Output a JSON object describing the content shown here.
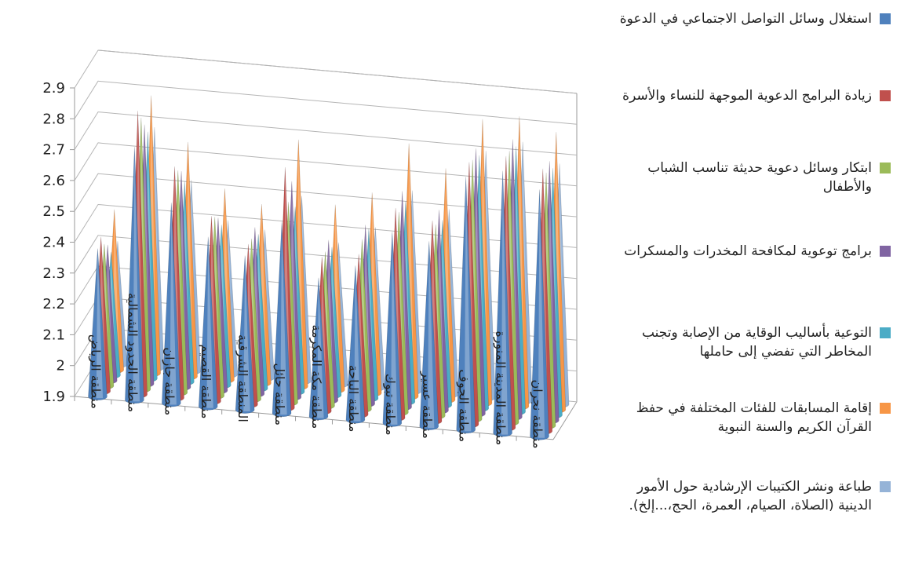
{
  "chart_data": {
    "type": "bar",
    "style": "3d-cone",
    "title": "",
    "xlabel": "",
    "ylabel": "",
    "ylim": [
      1.9,
      2.9
    ],
    "yticks": [
      "1.9",
      "2",
      "2.1",
      "2.2",
      "2.3",
      "2.4",
      "2.5",
      "2.6",
      "2.7",
      "2.8",
      "2.9"
    ],
    "grid": true,
    "legend_position": "right",
    "categories": [
      "منطقة الرياض",
      "منطقة الحدود الشمالية",
      "منطقة جازان",
      "منطقة القصيم",
      "المنطقة الشرقية",
      "منطقة حائل",
      "منطقة مكة المكرمة",
      "منطقة الباحة",
      "منطقة تبوك",
      "منطقة عسير",
      "منطقة الجوف",
      "منطقة المدينة المنورة",
      "منطقة نجران"
    ],
    "series": [
      {
        "name": "استغلال وسائل التواصل الاجتماعي في الدعوة",
        "color": "#4f81bd",
        "values": [
          2.38,
          2.72,
          2.55,
          2.45,
          2.4,
          2.52,
          2.35,
          2.4,
          2.52,
          2.5,
          2.72,
          2.75,
          2.7
        ]
      },
      {
        "name": "زيادة البرامج الدعوية الموجهة للنساء والأسرة",
        "color": "#c0504d",
        "values": [
          2.4,
          2.82,
          2.65,
          2.5,
          2.42,
          2.68,
          2.4,
          2.42,
          2.58,
          2.55,
          2.75,
          2.78,
          2.75
        ]
      },
      {
        "name": "ابتكار وسائل دعوية حديثة تناسب الشباب والأطفال",
        "color": "#9bbb59",
        "values": [
          2.36,
          2.78,
          2.62,
          2.48,
          2.42,
          2.55,
          2.4,
          2.45,
          2.55,
          2.52,
          2.74,
          2.78,
          2.72
        ]
      },
      {
        "name": "برامج توعوية لمكافحة المخدرات والمسكرات",
        "color": "#8064a2",
        "values": [
          2.34,
          2.74,
          2.6,
          2.46,
          2.44,
          2.6,
          2.42,
          2.48,
          2.6,
          2.55,
          2.76,
          2.8,
          2.74
        ]
      },
      {
        "name": "التوعية بأساليب الوقاية من الإصابة وتجنب المخاطر التي تفضي إلى حاملها",
        "color": "#4bacc6",
        "values": [
          2.3,
          2.7,
          2.55,
          2.42,
          2.4,
          2.5,
          2.38,
          2.45,
          2.55,
          2.5,
          2.72,
          2.76,
          2.7
        ]
      },
      {
        "name": "إقامة المسابقات للفئات المختلفة في حفظ القرآن الكريم والسنة النبوية",
        "color": "#f79646",
        "values": [
          2.42,
          2.8,
          2.66,
          2.52,
          2.48,
          2.7,
          2.5,
          2.55,
          2.72,
          2.65,
          2.82,
          2.84,
          2.8
        ]
      },
      {
        "name": "طباعة ونشر الكتيبات الإرشادية حول الأمور الدينية (الصلاة، الصيام، العمرة، الحج،...إلخ).",
        "color": "#95b3d7",
        "values": [
          2.3,
          2.68,
          2.52,
          2.4,
          2.38,
          2.5,
          2.36,
          2.42,
          2.55,
          2.5,
          2.7,
          2.74,
          2.68
        ]
      }
    ]
  }
}
